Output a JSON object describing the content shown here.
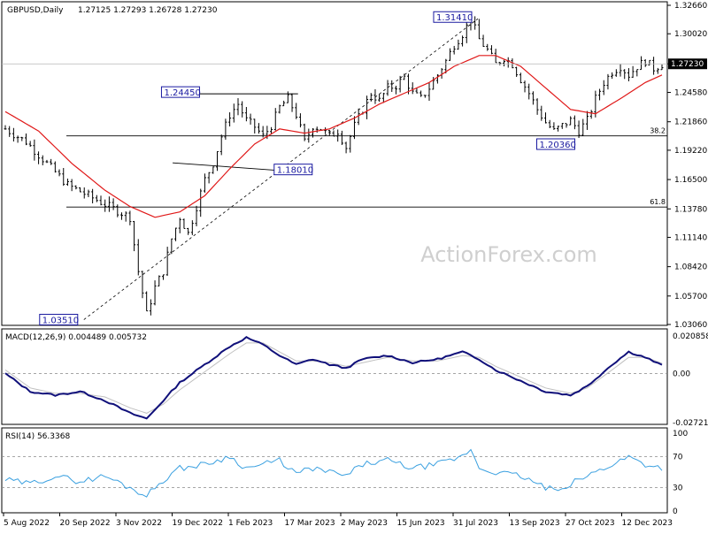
{
  "chart_data": [
    {
      "type": "candlestick",
      "title": "GBPUSD,Daily",
      "ohlc_header": "1.27125 1.27293 1.26728 1.27230",
      "watermark": "ActionForex.com",
      "current_price": 1.2723,
      "ylim": [
        1.0306,
        1.3266
      ],
      "yticks": [
        "1.32660",
        "1.30020",
        "1.27230",
        "1.24580",
        "1.21860",
        "1.19220",
        "1.16500",
        "1.13780",
        "1.11140",
        "1.08420",
        "1.05700",
        "1.03060"
      ],
      "xticks": [
        "5 Aug 2022",
        "20 Sep 2022",
        "3 Nov 2022",
        "19 Dec 2022",
        "1 Feb 2023",
        "17 Mar 2023",
        "2 May 2023",
        "15 Jun 2023",
        "31 Jul 2023",
        "13 Sep 2023",
        "27 Oct 2023",
        "12 Dec 2023"
      ],
      "close_series": [
        [
          0,
          1.212
        ],
        [
          5,
          1.2
        ],
        [
          10,
          1.18
        ],
        [
          15,
          1.16
        ],
        [
          20,
          1.15
        ],
        [
          25,
          1.14
        ],
        [
          30,
          1.13
        ],
        [
          32,
          1.08
        ],
        [
          34,
          1.04
        ],
        [
          36,
          1.065
        ],
        [
          38,
          1.08
        ],
        [
          40,
          1.11
        ],
        [
          42,
          1.13
        ],
        [
          44,
          1.115
        ],
        [
          46,
          1.14
        ],
        [
          48,
          1.165
        ],
        [
          50,
          1.18
        ],
        [
          52,
          1.205
        ],
        [
          54,
          1.225
        ],
        [
          56,
          1.235
        ],
        [
          58,
          1.22
        ],
        [
          60,
          1.214
        ],
        [
          62,
          1.205
        ],
        [
          64,
          1.215
        ],
        [
          66,
          1.232
        ],
        [
          68,
          1.24
        ],
        [
          70,
          1.225
        ],
        [
          72,
          1.2
        ],
        [
          74,
          1.215
        ],
        [
          76,
          1.212
        ],
        [
          78,
          1.205
        ],
        [
          80,
          1.21
        ],
        [
          82,
          1.195
        ],
        [
          84,
          1.215
        ],
        [
          86,
          1.23
        ],
        [
          88,
          1.245
        ],
        [
          90,
          1.238
        ],
        [
          92,
          1.25
        ],
        [
          94,
          1.252
        ],
        [
          96,
          1.26
        ],
        [
          98,
          1.245
        ],
        [
          100,
          1.24
        ],
        [
          102,
          1.25
        ],
        [
          104,
          1.262
        ],
        [
          106,
          1.275
        ],
        [
          108,
          1.29
        ],
        [
          110,
          1.3
        ],
        [
          112,
          1.314
        ],
        [
          114,
          1.295
        ],
        [
          116,
          1.285
        ],
        [
          118,
          1.272
        ],
        [
          120,
          1.278
        ],
        [
          122,
          1.272
        ],
        [
          124,
          1.258
        ],
        [
          126,
          1.245
        ],
        [
          128,
          1.23
        ],
        [
          130,
          1.218
        ],
        [
          132,
          1.21
        ],
        [
          134,
          1.215
        ],
        [
          136,
          1.22
        ],
        [
          138,
          1.21
        ],
        [
          140,
          1.22
        ],
        [
          142,
          1.24
        ],
        [
          144,
          1.255
        ],
        [
          146,
          1.265
        ],
        [
          148,
          1.27
        ],
        [
          150,
          1.262
        ],
        [
          152,
          1.27
        ],
        [
          154,
          1.275
        ],
        [
          156,
          1.268
        ],
        [
          158,
          1.272
        ]
      ],
      "ma_series": [
        [
          0,
          1.228
        ],
        [
          8,
          1.21
        ],
        [
          16,
          1.18
        ],
        [
          24,
          1.155
        ],
        [
          30,
          1.14
        ],
        [
          36,
          1.13
        ],
        [
          42,
          1.135
        ],
        [
          48,
          1.15
        ],
        [
          54,
          1.175
        ],
        [
          60,
          1.198
        ],
        [
          66,
          1.212
        ],
        [
          72,
          1.208
        ],
        [
          78,
          1.212
        ],
        [
          84,
          1.222
        ],
        [
          90,
          1.235
        ],
        [
          96,
          1.245
        ],
        [
          102,
          1.255
        ],
        [
          108,
          1.27
        ],
        [
          114,
          1.28
        ],
        [
          118,
          1.28
        ],
        [
          124,
          1.27
        ],
        [
          130,
          1.25
        ],
        [
          136,
          1.23
        ],
        [
          142,
          1.226
        ],
        [
          148,
          1.24
        ],
        [
          154,
          1.255
        ],
        [
          158,
          1.262
        ]
      ],
      "levels": [
        {
          "label": "1.31410",
          "value": 1.3141,
          "x": 112
        },
        {
          "label": "1.24450",
          "value": 1.2445,
          "x": 38
        },
        {
          "label": "1.20360",
          "value": 1.2036,
          "x": 130
        },
        {
          "label": "1.18010",
          "value": 1.1801,
          "x": 60
        },
        {
          "label": "1.03510",
          "value": 1.0351,
          "x": 4
        }
      ],
      "fib_lines": [
        {
          "label": "38.2",
          "value": 1.2055
        },
        {
          "label": "61.8",
          "value": 1.1395
        }
      ]
    },
    {
      "type": "line",
      "title": "MACD(12,26,9) 0.004489 0.005732",
      "ylim": [
        -0.027213,
        0.020858
      ],
      "yticks": [
        "0.020858",
        "0.00",
        "-0.027213"
      ],
      "series": [
        {
          "values": [
            [
              0,
              0.0
            ],
            [
              6,
              -0.01
            ],
            [
              12,
              -0.012
            ],
            [
              18,
              -0.01
            ],
            [
              24,
              -0.015
            ],
            [
              30,
              -0.022
            ],
            [
              34,
              -0.025
            ],
            [
              38,
              -0.015
            ],
            [
              42,
              -0.005
            ],
            [
              48,
              0.005
            ],
            [
              54,
              0.015
            ],
            [
              58,
              0.02
            ],
            [
              62,
              0.016
            ],
            [
              66,
              0.01
            ],
            [
              70,
              0.005
            ],
            [
              74,
              0.008
            ],
            [
              78,
              0.005
            ],
            [
              82,
              0.003
            ],
            [
              86,
              0.008
            ],
            [
              92,
              0.01
            ],
            [
              98,
              0.006
            ],
            [
              104,
              0.008
            ],
            [
              110,
              0.012
            ],
            [
              114,
              0.008
            ],
            [
              118,
              0.002
            ],
            [
              124,
              -0.004
            ],
            [
              130,
              -0.01
            ],
            [
              136,
              -0.012
            ],
            [
              140,
              -0.007
            ],
            [
              146,
              0.005
            ],
            [
              150,
              0.012
            ],
            [
              154,
              0.009
            ],
            [
              158,
              0.0045
            ]
          ]
        },
        {
          "values": [
            [
              0,
              0.002
            ],
            [
              6,
              -0.008
            ],
            [
              12,
              -0.011
            ],
            [
              18,
              -0.011
            ],
            [
              24,
              -0.013
            ],
            [
              30,
              -0.019
            ],
            [
              34,
              -0.022
            ],
            [
              38,
              -0.017
            ],
            [
              42,
              -0.009
            ],
            [
              48,
              0.001
            ],
            [
              54,
              0.011
            ],
            [
              58,
              0.017
            ],
            [
              62,
              0.017
            ],
            [
              66,
              0.012
            ],
            [
              70,
              0.007
            ],
            [
              74,
              0.007
            ],
            [
              78,
              0.006
            ],
            [
              82,
              0.004
            ],
            [
              86,
              0.006
            ],
            [
              92,
              0.009
            ],
            [
              98,
              0.007
            ],
            [
              104,
              0.007
            ],
            [
              110,
              0.01
            ],
            [
              114,
              0.009
            ],
            [
              118,
              0.004
            ],
            [
              124,
              -0.002
            ],
            [
              130,
              -0.008
            ],
            [
              136,
              -0.011
            ],
            [
              140,
              -0.008
            ],
            [
              146,
              0.002
            ],
            [
              150,
              0.009
            ],
            [
              154,
              0.009
            ],
            [
              158,
              0.0057
            ]
          ]
        }
      ]
    },
    {
      "type": "line",
      "title": "RSI(14) 56.3368",
      "ylim": [
        0,
        100
      ],
      "yticks": [
        "100",
        "70",
        "30",
        "0"
      ],
      "levels": [
        70,
        30
      ],
      "series": [
        {
          "values": [
            [
              0,
              40
            ],
            [
              6,
              35
            ],
            [
              12,
              45
            ],
            [
              18,
              38
            ],
            [
              24,
              45
            ],
            [
              30,
              30
            ],
            [
              34,
              20
            ],
            [
              38,
              40
            ],
            [
              42,
              55
            ],
            [
              48,
              60
            ],
            [
              54,
              70
            ],
            [
              58,
              55
            ],
            [
              62,
              60
            ],
            [
              66,
              65
            ],
            [
              70,
              48
            ],
            [
              74,
              55
            ],
            [
              78,
              50
            ],
            [
              82,
              45
            ],
            [
              86,
              60
            ],
            [
              92,
              65
            ],
            [
              98,
              55
            ],
            [
              104,
              60
            ],
            [
              110,
              70
            ],
            [
              112,
              80
            ],
            [
              114,
              55
            ],
            [
              118,
              50
            ],
            [
              124,
              45
            ],
            [
              130,
              30
            ],
            [
              134,
              25
            ],
            [
              136,
              35
            ],
            [
              140,
              45
            ],
            [
              146,
              60
            ],
            [
              150,
              70
            ],
            [
              154,
              60
            ],
            [
              158,
              56
            ]
          ]
        }
      ]
    }
  ]
}
